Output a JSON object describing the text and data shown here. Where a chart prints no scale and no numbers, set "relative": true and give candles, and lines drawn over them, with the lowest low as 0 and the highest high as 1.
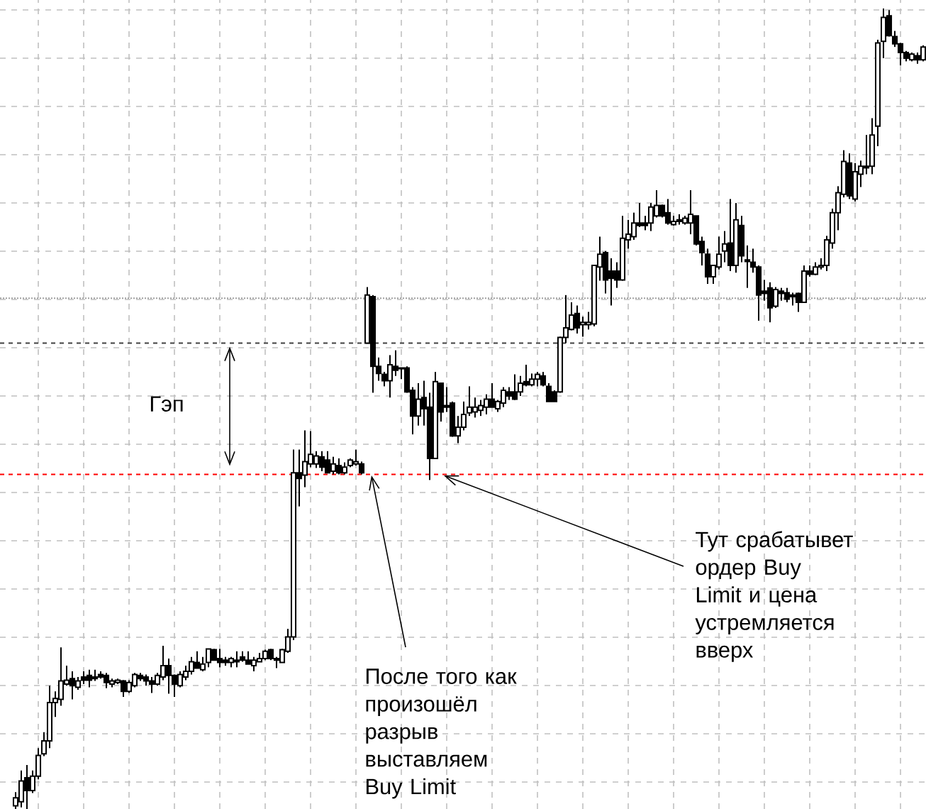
{
  "chart_data": {
    "type": "candlestick",
    "relative": true,
    "grid": true,
    "categories": [
      null,
      null,
      null,
      null,
      null,
      null,
      null,
      null,
      null,
      null,
      null,
      null,
      null,
      null,
      null,
      null,
      null,
      null,
      null,
      null,
      null,
      null,
      null,
      null,
      null,
      null,
      null,
      null,
      null,
      null,
      null,
      null,
      null,
      null,
      null,
      null,
      null,
      null,
      null,
      null,
      null,
      null,
      null,
      null,
      null,
      null,
      null,
      null,
      null,
      null,
      null,
      null,
      null,
      null,
      null,
      null,
      null,
      null,
      null,
      null,
      null,
      null,
      null,
      null,
      null,
      null,
      null,
      null,
      null,
      null,
      null,
      null,
      null,
      null,
      null,
      null,
      null,
      null,
      null,
      null,
      null,
      null,
      null,
      null,
      null,
      null,
      null,
      null,
      null,
      null,
      null,
      null,
      null,
      null,
      null,
      null,
      null,
      null,
      null,
      null,
      null,
      null,
      null,
      null,
      null,
      null,
      null,
      null,
      null,
      null,
      null,
      null,
      null,
      null,
      null,
      null,
      null,
      null,
      null,
      null,
      null,
      null,
      null,
      null,
      null,
      null,
      null,
      null,
      null,
      null,
      null,
      null,
      null,
      null,
      null,
      null,
      null,
      null,
      null,
      null,
      null,
      null,
      null,
      null,
      null,
      null,
      null,
      null,
      null,
      null,
      null,
      null,
      null,
      null,
      null,
      null,
      null,
      null,
      null,
      null,
      null
    ],
    "ohlc": [
      [
        0.004,
        0.021,
        0,
        0.014
      ],
      [
        0.009,
        0.048,
        0.002,
        0.035
      ],
      [
        0.039,
        0.055,
        0,
        0.023
      ],
      [
        0.023,
        0.048,
        0.02,
        0.041
      ],
      [
        0.041,
        0.076,
        0.037,
        0.067
      ],
      [
        0.069,
        0.096,
        0.066,
        0.085
      ],
      [
        0.085,
        0.154,
        0.076,
        0.133
      ],
      [
        0.133,
        0.147,
        0.115,
        0.138
      ],
      [
        0.137,
        0.202,
        0.129,
        0.16
      ],
      [
        0.156,
        0.179,
        0.154,
        0.161
      ],
      [
        0.163,
        0.172,
        0.137,
        0.154
      ],
      [
        0.152,
        0.165,
        0.149,
        0.16
      ],
      [
        0.165,
        0.172,
        0.156,
        0.161
      ],
      [
        0.167,
        0.174,
        0.152,
        0.161
      ],
      [
        0.165,
        0.174,
        0.16,
        0.163
      ],
      [
        0.168,
        0.172,
        0.163,
        0.165
      ],
      [
        0.167,
        0.17,
        0.151,
        0.158
      ],
      [
        0.156,
        0.163,
        0.152,
        0.16
      ],
      [
        0.158,
        0.163,
        0.156,
        0.161
      ],
      [
        0.16,
        0.161,
        0.14,
        0.147
      ],
      [
        0.147,
        0.161,
        0.145,
        0.158
      ],
      [
        0.154,
        0.17,
        0.152,
        0.168
      ],
      [
        0.167,
        0.17,
        0.16,
        0.163
      ],
      [
        0.165,
        0.168,
        0.154,
        0.16
      ],
      [
        0.16,
        0.165,
        0.145,
        0.156
      ],
      [
        0.156,
        0.17,
        0.154,
        0.167
      ],
      [
        0.165,
        0.204,
        0.161,
        0.179
      ],
      [
        0.179,
        0.188,
        0.144,
        0.167
      ],
      [
        0.167,
        0.168,
        0.14,
        0.156
      ],
      [
        0.154,
        0.172,
        0.152,
        0.168
      ],
      [
        0.165,
        0.179,
        0.161,
        0.172
      ],
      [
        0.172,
        0.19,
        0.168,
        0.184
      ],
      [
        0.183,
        0.197,
        0.176,
        0.176
      ],
      [
        0.174,
        0.19,
        0.172,
        0.181
      ],
      [
        0.183,
        0.2,
        0.177,
        0.2
      ],
      [
        0.199,
        0.2,
        0.186,
        0.186
      ],
      [
        0.188,
        0.2,
        0.177,
        0.183
      ],
      [
        0.186,
        0.19,
        0.179,
        0.183
      ],
      [
        0.183,
        0.19,
        0.177,
        0.188
      ],
      [
        0.186,
        0.197,
        0.177,
        0.184
      ],
      [
        0.19,
        0.197,
        0.184,
        0.186
      ],
      [
        0.186,
        0.197,
        0.181,
        0.181
      ],
      [
        0.179,
        0.19,
        0.172,
        0.186
      ],
      [
        0.184,
        0.195,
        0.184,
        0.188
      ],
      [
        0.188,
        0.199,
        0.186,
        0.197
      ],
      [
        0.199,
        0.2,
        0.186,
        0.188
      ],
      [
        0.188,
        0.19,
        0.176,
        0.186
      ],
      [
        0.183,
        0.2,
        0.183,
        0.199
      ],
      [
        0.197,
        0.225,
        0.195,
        0.215
      ],
      [
        0.215,
        0.449,
        0.211,
        0.42
      ],
      [
        0.42,
        0.449,
        0.378,
        0.413
      ],
      [
        0.417,
        0.473,
        0.402,
        0.434
      ],
      [
        0.431,
        0.472,
        0.427,
        0.443
      ],
      [
        0.431,
        0.447,
        0.426,
        0.441
      ],
      [
        0.44,
        0.447,
        0.422,
        0.427
      ],
      [
        0.436,
        0.447,
        0.42,
        0.42
      ],
      [
        0.422,
        0.44,
        0.418,
        0.431
      ],
      [
        0.429,
        0.438,
        0.418,
        0.42
      ],
      [
        0.42,
        0.433,
        0.418,
        0.427
      ],
      [
        0.429,
        0.438,
        0.427,
        0.436
      ],
      [
        0.431,
        0.449,
        0.429,
        0.434
      ],
      [
        0.431,
        0.434,
        0.418,
        0.42
      ],
      [
        0.582,
        0.652,
        0.582,
        0.642
      ],
      [
        0.64,
        0.642,
        0.52,
        0.553
      ],
      [
        0.553,
        0.564,
        0.535,
        0.544
      ],
      [
        0.543,
        0.546,
        0.528,
        0.535
      ],
      [
        0.535,
        0.567,
        0.514,
        0.555
      ],
      [
        0.553,
        0.573,
        0.541,
        0.548
      ],
      [
        0.551,
        0.551,
        0.537,
        0.55
      ],
      [
        0.551,
        0.553,
        0.52,
        0.521
      ],
      [
        0.523,
        0.527,
        0.468,
        0.491
      ],
      [
        0.491,
        0.532,
        0.479,
        0.512
      ],
      [
        0.514,
        0.535,
        0.479,
        0.5
      ],
      [
        0.502,
        0.52,
        0.411,
        0.438
      ],
      [
        0.438,
        0.546,
        0.438,
        0.534
      ],
      [
        0.532,
        0.532,
        0.484,
        0.496
      ],
      [
        0.504,
        0.527,
        0.496,
        0.502
      ],
      [
        0.507,
        0.509,
        0.465,
        0.466
      ],
      [
        0.466,
        0.491,
        0.457,
        0.477
      ],
      [
        0.477,
        0.509,
        0.473,
        0.493
      ],
      [
        0.495,
        0.528,
        0.491,
        0.502
      ],
      [
        0.496,
        0.514,
        0.489,
        0.502
      ],
      [
        0.498,
        0.511,
        0.491,
        0.504
      ],
      [
        0.502,
        0.518,
        0.493,
        0.512
      ],
      [
        0.512,
        0.532,
        0.502,
        0.502
      ],
      [
        0.5,
        0.511,
        0.496,
        0.509
      ],
      [
        0.507,
        0.527,
        0.502,
        0.523
      ],
      [
        0.521,
        0.527,
        0.511,
        0.516
      ],
      [
        0.521,
        0.543,
        0.511,
        0.512
      ],
      [
        0.521,
        0.541,
        0.516,
        0.532
      ],
      [
        0.534,
        0.555,
        0.528,
        0.53
      ],
      [
        0.53,
        0.544,
        0.528,
        0.537
      ],
      [
        0.537,
        0.546,
        0.528,
        0.543
      ],
      [
        0.541,
        0.546,
        0.528,
        0.53
      ],
      [
        0.528,
        0.532,
        0.509,
        0.509
      ],
      [
        0.521,
        0.523,
        0.509,
        0.509
      ],
      [
        0.521,
        0.59,
        0.52,
        0.589
      ],
      [
        0.589,
        0.642,
        0.582,
        0.601
      ],
      [
        0.599,
        0.633,
        0.598,
        0.617
      ],
      [
        0.619,
        0.629,
        0.594,
        0.601
      ],
      [
        0.605,
        0.615,
        0.59,
        0.608
      ],
      [
        0.605,
        0.621,
        0.599,
        0.608
      ],
      [
        0.606,
        0.679,
        0.603,
        0.679
      ],
      [
        0.677,
        0.715,
        0.66,
        0.693
      ],
      [
        0.695,
        0.697,
        0.644,
        0.661
      ],
      [
        0.672,
        0.688,
        0.629,
        0.663
      ],
      [
        0.672,
        0.683,
        0.651,
        0.661
      ],
      [
        0.661,
        0.741,
        0.66,
        0.713
      ],
      [
        0.711,
        0.736,
        0.7,
        0.718
      ],
      [
        0.715,
        0.745,
        0.711,
        0.732
      ],
      [
        0.732,
        0.757,
        0.727,
        0.729
      ],
      [
        0.732,
        0.741,
        0.723,
        0.729
      ],
      [
        0.732,
        0.757,
        0.722,
        0.752
      ],
      [
        0.741,
        0.773,
        0.739,
        0.754
      ],
      [
        0.754,
        0.755,
        0.739,
        0.741
      ],
      [
        0.745,
        0.762,
        0.73,
        0.732
      ],
      [
        0.73,
        0.741,
        0.729,
        0.734
      ],
      [
        0.736,
        0.743,
        0.73,
        0.734
      ],
      [
        0.732,
        0.741,
        0.73,
        0.738
      ],
      [
        0.732,
        0.773,
        0.718,
        0.743
      ],
      [
        0.741,
        0.741,
        0.704,
        0.706
      ],
      [
        0.709,
        0.715,
        0.679,
        0.695
      ],
      [
        0.693,
        0.7,
        0.656,
        0.665
      ],
      [
        0.665,
        0.679,
        0.656,
        0.679
      ],
      [
        0.677,
        0.715,
        0.674,
        0.693
      ],
      [
        0.697,
        0.722,
        0.683,
        0.706
      ],
      [
        0.707,
        0.762,
        0.672,
        0.679
      ],
      [
        0.679,
        0.757,
        0.67,
        0.736
      ],
      [
        0.729,
        0.741,
        0.683,
        0.691
      ],
      [
        0.686,
        0.704,
        0.651,
        0.684
      ],
      [
        0.683,
        0.7,
        0.67,
        0.677
      ],
      [
        0.677,
        0.679,
        0.61,
        0.642
      ],
      [
        0.647,
        0.661,
        0.635,
        0.644
      ],
      [
        0.651,
        0.658,
        0.608,
        0.626
      ],
      [
        0.628,
        0.652,
        0.626,
        0.649
      ],
      [
        0.647,
        0.651,
        0.635,
        0.644
      ],
      [
        0.645,
        0.651,
        0.633,
        0.637
      ],
      [
        0.642,
        0.645,
        0.629,
        0.64
      ],
      [
        0.644,
        0.645,
        0.621,
        0.633
      ],
      [
        0.633,
        0.679,
        0.633,
        0.672
      ],
      [
        0.672,
        0.679,
        0.665,
        0.668
      ],
      [
        0.668,
        0.683,
        0.667,
        0.677
      ],
      [
        0.677,
        0.688,
        0.674,
        0.679
      ],
      [
        0.679,
        0.716,
        0.672,
        0.711
      ],
      [
        0.707,
        0.75,
        0.7,
        0.745
      ],
      [
        0.745,
        0.778,
        0.723,
        0.77
      ],
      [
        0.768,
        0.823,
        0.764,
        0.809
      ],
      [
        0.807,
        0.819,
        0.762,
        0.766
      ],
      [
        0.762,
        0.807,
        0.759,
        0.796
      ],
      [
        0.793,
        0.81,
        0.777,
        0.803
      ],
      [
        0.803,
        0.842,
        0.793,
        0.801
      ],
      [
        0.803,
        0.863,
        0.793,
        0.842
      ],
      [
        0.853,
        0.961,
        0.828,
        0.957
      ],
      [
        0.959,
        1,
        0.938,
        0.989
      ],
      [
        0.991,
        0.998,
        0.965,
        0.966
      ],
      [
        0.965,
        0.972,
        0.952,
        0.956
      ],
      [
        0.956,
        0.957,
        0.929,
        0.945
      ],
      [
        0.945,
        0.947,
        0.934,
        0.938
      ],
      [
        0.936,
        0.945,
        0.934,
        0.943
      ],
      [
        0.941,
        0.945,
        0.931,
        0.936
      ],
      [
        0.936,
        0.954,
        0.934,
        0.952
      ]
    ],
    "ref_lines": [
      {
        "axis": "y",
        "value": 0.418,
        "color": "#ff0000",
        "line_style": "dashed"
      },
      {
        "axis": "y",
        "value": 0.582,
        "color": "#404040",
        "line_style": "dashed"
      },
      {
        "axis": "y",
        "value": 0.638,
        "color": "#a0a0a0",
        "line_style": "dotted"
      }
    ],
    "annotations": [
      "Гэп",
      "Тут срабатывет ордер Buy Limit и цена устремляется вверх",
      "После того как произошёл разрыв выставляем Buy Limit"
    ]
  }
}
